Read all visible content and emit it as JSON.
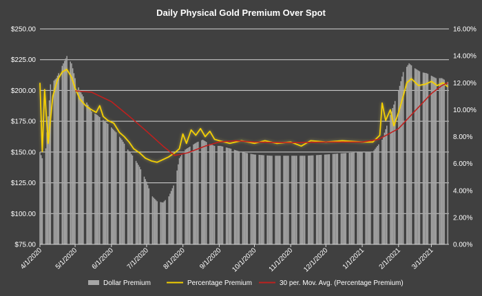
{
  "chart_data": {
    "type": "bar",
    "title": "Daily Physical Gold Premium Over Spot",
    "xlabel": "",
    "ylabel": "",
    "grid": true,
    "legend_position": "bottom",
    "x_tick_labels": [
      "4/1/2020",
      "5/1/2020",
      "6/1/2020",
      "7/1/2020",
      "8/1/2020",
      "9/1/2020",
      "10/1/2020",
      "11/1/2020",
      "12/1/2020",
      "1/1/2021",
      "2/1/2021",
      "3/1/2021"
    ],
    "y_left": {
      "range": [
        75,
        250
      ],
      "tick_labels": [
        "$75.00",
        "$100.00",
        "$125.00",
        "$150.00",
        "$175.00",
        "$200.00",
        "$225.00",
        "$250.00"
      ]
    },
    "y_right": {
      "range": [
        0,
        16
      ],
      "tick_labels": [
        "0.00%",
        "2.00%",
        "4.00%",
        "6.00%",
        "8.00%",
        "10.00%",
        "12.00%",
        "14.00%",
        "16.00%"
      ]
    },
    "x_range": [
      "2020-04-01",
      "2021-03-16"
    ],
    "series": [
      {
        "name": "Dollar Premium",
        "kind": "bar",
        "axis": "left",
        "color": "#a6a6a6",
        "points": [
          [
            "2020-04-01",
            150
          ],
          [
            "2020-04-05",
            140
          ],
          [
            "2020-04-10",
            205
          ],
          [
            "2020-04-15",
            210
          ],
          [
            "2020-04-20",
            220
          ],
          [
            "2020-04-24",
            228
          ],
          [
            "2020-04-28",
            222
          ],
          [
            "2020-05-01",
            210
          ],
          [
            "2020-05-05",
            200
          ],
          [
            "2020-05-10",
            192
          ],
          [
            "2020-05-15",
            183
          ],
          [
            "2020-05-20",
            180
          ],
          [
            "2020-05-25",
            176
          ],
          [
            "2020-05-30",
            172
          ],
          [
            "2020-06-05",
            166
          ],
          [
            "2020-06-10",
            160
          ],
          [
            "2020-06-15",
            152
          ],
          [
            "2020-06-20",
            146
          ],
          [
            "2020-06-25",
            138
          ],
          [
            "2020-07-01",
            126
          ],
          [
            "2020-07-05",
            115
          ],
          [
            "2020-07-10",
            110
          ],
          [
            "2020-07-15",
            109
          ],
          [
            "2020-07-20",
            114
          ],
          [
            "2020-07-25",
            125
          ],
          [
            "2020-07-29",
            145
          ],
          [
            "2020-08-03",
            152
          ],
          [
            "2020-08-08",
            155
          ],
          [
            "2020-08-13",
            158
          ],
          [
            "2020-08-18",
            160
          ],
          [
            "2020-08-23",
            157
          ],
          [
            "2020-08-28",
            155
          ],
          [
            "2020-09-02",
            155
          ],
          [
            "2020-09-10",
            153
          ],
          [
            "2020-09-20",
            150
          ],
          [
            "2020-10-01",
            148
          ],
          [
            "2020-10-15",
            147
          ],
          [
            "2020-11-01",
            147
          ],
          [
            "2020-11-15",
            147
          ],
          [
            "2020-12-01",
            148
          ],
          [
            "2020-12-15",
            149
          ],
          [
            "2021-01-01",
            150
          ],
          [
            "2021-01-10",
            150
          ],
          [
            "2021-01-18",
            160
          ],
          [
            "2021-01-25",
            180
          ],
          [
            "2021-02-01",
            200
          ],
          [
            "2021-02-05",
            215
          ],
          [
            "2021-02-10",
            222
          ],
          [
            "2021-02-15",
            218
          ],
          [
            "2021-02-20",
            215
          ],
          [
            "2021-02-25",
            214
          ],
          [
            "2021-03-01",
            212
          ],
          [
            "2021-03-05",
            210
          ],
          [
            "2021-03-10",
            210
          ],
          [
            "2021-03-15",
            207
          ]
        ]
      },
      {
        "name": "Percentage Premium",
        "kind": "line",
        "axis": "right",
        "color": "#f5d000",
        "points": [
          [
            "2020-04-01",
            12.0
          ],
          [
            "2020-04-03",
            6.9
          ],
          [
            "2020-04-05",
            11.5
          ],
          [
            "2020-04-08",
            7.5
          ],
          [
            "2020-04-12",
            11.0
          ],
          [
            "2020-04-16",
            12.2
          ],
          [
            "2020-04-20",
            12.8
          ],
          [
            "2020-04-24",
            13.0
          ],
          [
            "2020-04-28",
            12.4
          ],
          [
            "2020-05-01",
            11.6
          ],
          [
            "2020-05-05",
            10.8
          ],
          [
            "2020-05-10",
            10.3
          ],
          [
            "2020-05-15",
            10.0
          ],
          [
            "2020-05-19",
            9.8
          ],
          [
            "2020-05-22",
            10.3
          ],
          [
            "2020-05-25",
            9.5
          ],
          [
            "2020-05-29",
            9.2
          ],
          [
            "2020-06-03",
            9.0
          ],
          [
            "2020-06-08",
            8.3
          ],
          [
            "2020-06-12",
            8.0
          ],
          [
            "2020-06-16",
            7.6
          ],
          [
            "2020-06-20",
            7.1
          ],
          [
            "2020-06-25",
            6.8
          ],
          [
            "2020-06-30",
            6.4
          ],
          [
            "2020-07-05",
            6.2
          ],
          [
            "2020-07-10",
            6.1
          ],
          [
            "2020-07-15",
            6.3
          ],
          [
            "2020-07-20",
            6.5
          ],
          [
            "2020-07-25",
            6.8
          ],
          [
            "2020-07-29",
            7.1
          ],
          [
            "2020-08-01",
            8.2
          ],
          [
            "2020-08-04",
            7.5
          ],
          [
            "2020-08-08",
            8.5
          ],
          [
            "2020-08-12",
            8.1
          ],
          [
            "2020-08-16",
            8.6
          ],
          [
            "2020-08-20",
            8.0
          ],
          [
            "2020-08-24",
            8.4
          ],
          [
            "2020-08-28",
            7.8
          ],
          [
            "2020-09-01",
            7.7
          ],
          [
            "2020-09-10",
            7.5
          ],
          [
            "2020-09-20",
            7.7
          ],
          [
            "2020-10-01",
            7.5
          ],
          [
            "2020-10-10",
            7.7
          ],
          [
            "2020-10-20",
            7.5
          ],
          [
            "2020-11-01",
            7.6
          ],
          [
            "2020-11-10",
            7.3
          ],
          [
            "2020-11-18",
            7.7
          ],
          [
            "2020-12-01",
            7.6
          ],
          [
            "2020-12-15",
            7.7
          ],
          [
            "2021-01-01",
            7.6
          ],
          [
            "2021-01-10",
            7.6
          ],
          [
            "2021-01-16",
            8.1
          ],
          [
            "2021-01-18",
            10.5
          ],
          [
            "2021-01-21",
            9.2
          ],
          [
            "2021-01-25",
            10.0
          ],
          [
            "2021-01-28",
            8.8
          ],
          [
            "2021-02-01",
            9.8
          ],
          [
            "2021-02-05",
            11.0
          ],
          [
            "2021-02-08",
            12.0
          ],
          [
            "2021-02-12",
            12.3
          ],
          [
            "2021-02-18",
            11.8
          ],
          [
            "2021-02-24",
            11.9
          ],
          [
            "2021-03-01",
            12.1
          ],
          [
            "2021-03-06",
            11.8
          ],
          [
            "2021-03-11",
            12.0
          ],
          [
            "2021-03-15",
            11.7
          ]
        ]
      },
      {
        "name": "30 per. Mov. Avg. (Percentage Premium)",
        "kind": "line",
        "axis": "right",
        "color": "#c0201e",
        "points": [
          [
            "2020-05-01",
            11.4
          ],
          [
            "2020-05-15",
            11.3
          ],
          [
            "2020-06-01",
            10.6
          ],
          [
            "2020-06-15",
            9.6
          ],
          [
            "2020-07-01",
            8.4
          ],
          [
            "2020-07-15",
            7.3
          ],
          [
            "2020-07-25",
            6.6
          ],
          [
            "2020-08-05",
            6.8
          ],
          [
            "2020-08-20",
            7.3
          ],
          [
            "2020-09-01",
            7.6
          ],
          [
            "2020-09-15",
            7.7
          ],
          [
            "2020-10-01",
            7.6
          ],
          [
            "2020-11-01",
            7.55
          ],
          [
            "2020-12-01",
            7.6
          ],
          [
            "2021-01-01",
            7.6
          ],
          [
            "2021-01-15",
            7.8
          ],
          [
            "2021-02-01",
            8.6
          ],
          [
            "2021-02-15",
            9.9
          ],
          [
            "2021-03-01",
            11.2
          ],
          [
            "2021-03-10",
            11.8
          ],
          [
            "2021-03-15",
            12.0
          ]
        ]
      }
    ]
  }
}
